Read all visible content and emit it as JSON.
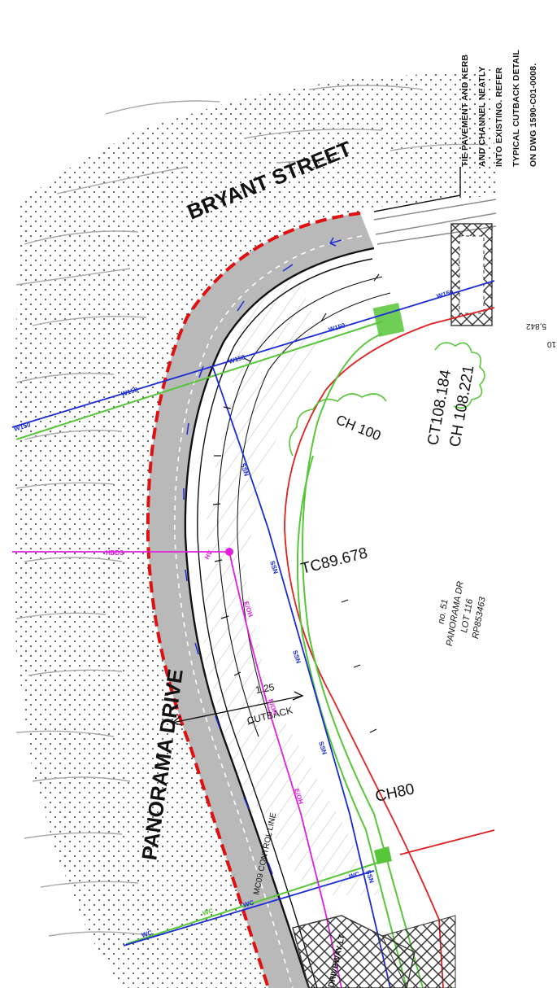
{
  "streets": {
    "bryant": "BRYANT STREET",
    "panorama": "PANORAMA DRIVE"
  },
  "note": {
    "line1": "TIE PAVEMENT AND KERB",
    "line2": "AND CHANNEL NEATLY",
    "line3": "INTO EXISTING. REFER",
    "line4": "TYPICAL CUTBACK DETAIL",
    "line5": "ON DWG 1590-C01-0008."
  },
  "chainage": {
    "ch100": "CH 100",
    "ct": "CT108.184",
    "ch": "CH 108.221",
    "tc": "TC89.678",
    "ch80": "CH80"
  },
  "lot": {
    "line1": "no. 51",
    "line2": "PANORAMA DR",
    "line3": "LOT 116",
    "line4": "RP853463"
  },
  "cutback": {
    "width": "1.25",
    "label": "CUTBACK"
  },
  "control_line": "MC09 CONTROL LINE",
  "utilities": {
    "water": "W150",
    "sewer": "SSN",
    "hv": "HV",
    "elec": "E/OH",
    "comms": "WC",
    "hdd": "HDD3",
    "driveway": "DRIVEWAY LT"
  },
  "edge_text": {
    "a": "5,842",
    "b": "10"
  },
  "colors": {
    "water_line": "#1a2bd6",
    "magenta_line": "#e020e0",
    "green_line": "#57c63a",
    "lot_boundary": "#e02020",
    "cutback_dash": "#e01010",
    "pavement_fill": "#b9b9b9"
  }
}
